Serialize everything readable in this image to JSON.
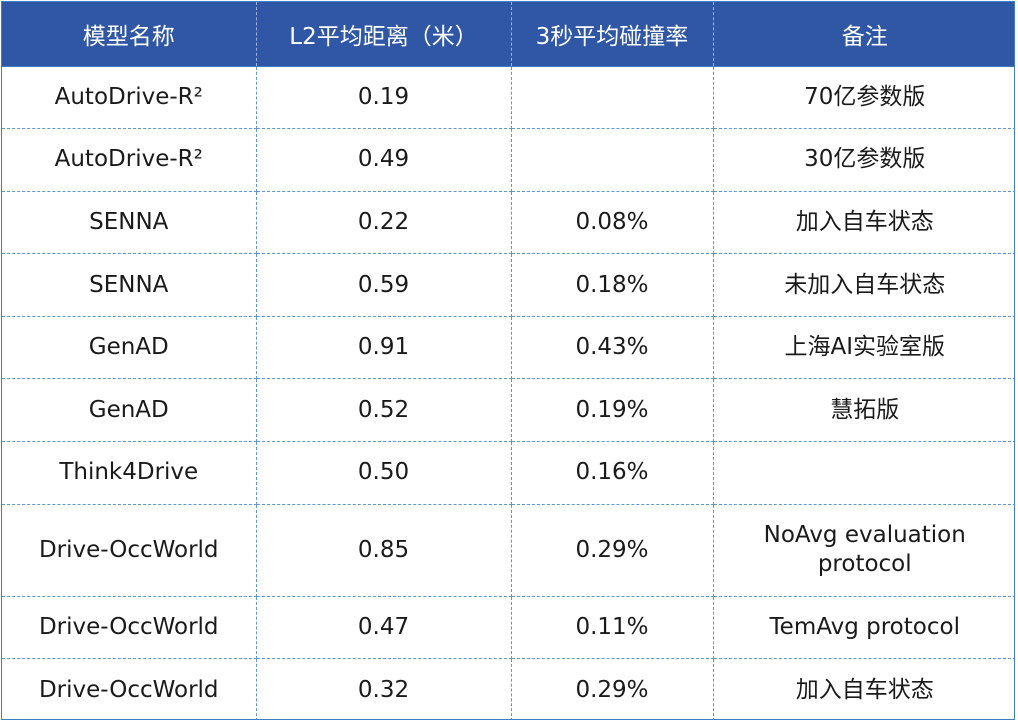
{
  "table": {
    "headers": [
      "模型名称",
      "L2平均距离（米）",
      "3秒平均碰撞率",
      "备注"
    ],
    "rows": [
      [
        "AutoDrive-R²",
        "0.19",
        "",
        "70亿参数版"
      ],
      [
        "AutoDrive-R²",
        "0.49",
        "",
        "30亿参数版"
      ],
      [
        "SENNA",
        "0.22",
        "0.08%",
        "加入自车状态"
      ],
      [
        "SENNA",
        "0.59",
        "0.18%",
        "未加入自车状态"
      ],
      [
        "GenAD",
        "0.91",
        "0.43%",
        "上海AI实验室版"
      ],
      [
        "GenAD",
        "0.52",
        "0.19%",
        "慧拓版"
      ],
      [
        "Think4Drive",
        "0.50",
        "0.16%",
        ""
      ],
      [
        "Drive-OccWorld",
        "0.85",
        "0.29%",
        "NoAvg evaluation protocol"
      ],
      [
        "Drive-OccWorld",
        "0.47",
        "0.11%",
        "TemAvg protocol"
      ],
      [
        "Drive-OccWorld",
        "0.32",
        "0.29%",
        "加入自车状态"
      ]
    ]
  },
  "colors": {
    "header_bg": "#2f57a5",
    "header_text": "#ffffff",
    "grid_line": "#5f97d2"
  }
}
